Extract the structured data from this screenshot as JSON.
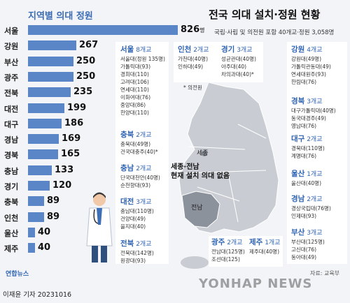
{
  "chart_data": {
    "type": "bar",
    "orientation": "horizontal",
    "title": "지역별 의대 정원",
    "categories": [
      "서울",
      "강원",
      "부산",
      "광주",
      "전북",
      "대전",
      "대구",
      "경남",
      "경북",
      "충남",
      "경기",
      "충북",
      "인천",
      "울산",
      "제주"
    ],
    "values": [
      826,
      267,
      250,
      250,
      235,
      199,
      186,
      169,
      165,
      133,
      120,
      89,
      89,
      40,
      40
    ],
    "value_unit": "명",
    "xlim": [
      0,
      826
    ],
    "grid": false,
    "bar_color": "#5a86c8"
  },
  "header": {
    "title": "전국 의대 설치·정원 현황",
    "subtitle": "국립·사립 및 의전원 포함 40개교·정원 3,058명"
  },
  "regions": [
    {
      "name": "서울",
      "count": "8개교",
      "schools": [
        "서울대(정원 135명)",
        "가톨릭대(93)",
        "경희대(110)",
        "고려대(106)",
        "연세대(110)",
        "이화여대(76)",
        "중앙대(86)",
        "한양대(110)"
      ]
    },
    {
      "name": "충북",
      "count": "2개교",
      "schools": [
        "충북대(49명)",
        "건국대충주(40)*"
      ]
    },
    {
      "name": "충남",
      "count": "2개교",
      "schools": [
        "단국대천안(40명)",
        "순천향대(93)"
      ]
    },
    {
      "name": "대전",
      "count": "3개교",
      "schools": [
        "충남대(110명)",
        "건양대(49)",
        "을지대(40)"
      ]
    },
    {
      "name": "전북",
      "count": "2개교",
      "schools": [
        "전북대(142명)",
        "원광대(93)"
      ]
    },
    {
      "name": "인천",
      "count": "2개교",
      "schools": [
        "가천대(40명)",
        "인하대(49)"
      ]
    },
    {
      "name": "경기",
      "count": "3개교",
      "schools": [
        "성균관대(40명)",
        "아주대(40)",
        "차의과대(40)*"
      ]
    },
    {
      "name": "강원",
      "count": "4개교",
      "schools": [
        "강원대(49명)",
        "가톨릭관동대(49)",
        "연세대원주(93)",
        "한림대(76)"
      ]
    },
    {
      "name": "경북",
      "count": "3개교",
      "schools": [
        "대구가톨릭대(40명)",
        "동국대경주(49)",
        "영남대(76)"
      ]
    },
    {
      "name": "대구",
      "count": "2개교",
      "schools": [
        "경북대(110명)",
        "계명대(76)"
      ]
    },
    {
      "name": "울산",
      "count": "1개교",
      "schools": [
        "울산대(40명)"
      ]
    },
    {
      "name": "경남",
      "count": "2개교",
      "schools": [
        "경상국립대(76명)",
        "인제대(93)"
      ]
    },
    {
      "name": "부산",
      "count": "3개교",
      "schools": [
        "부산대(125명)",
        "고신대(76)",
        "동아대(49)"
      ]
    },
    {
      "name": "광주",
      "count": "2개교",
      "schools": [
        "전남대(125명)",
        "조선대(125)"
      ]
    },
    {
      "name": "제주",
      "count": "1개교",
      "schools": [
        "제주대(40명)"
      ]
    }
  ],
  "map": {
    "note": "* 의전원",
    "sejong": "세종",
    "callout_line1": "세종·전남",
    "callout_line2": "현재 설치 의대 없음",
    "jeonnam": "전남"
  },
  "footer": {
    "source": "자료: 교육부",
    "credit": "이재윤 기자  20231016",
    "logo": "연합뉴스",
    "watermark": "YONHAP NEWS"
  },
  "colors": {
    "accent": "#2e63b2",
    "bar": "#5a86c8",
    "map": "#c9cdd3"
  }
}
